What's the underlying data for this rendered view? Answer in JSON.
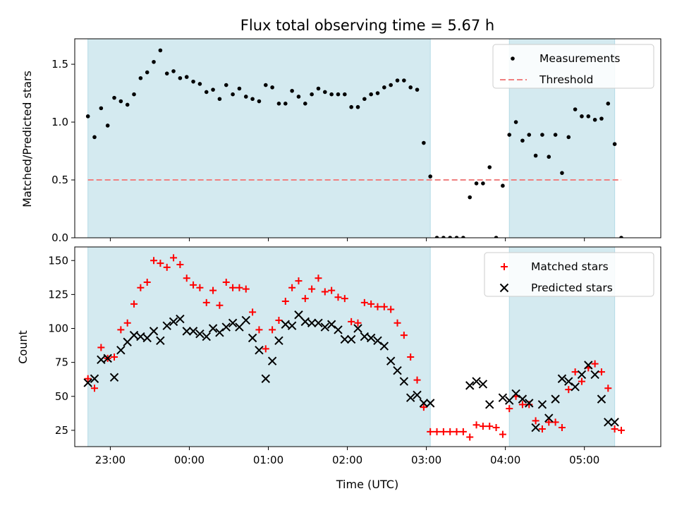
{
  "chart_data": [
    {
      "type": "scatter",
      "title": "Flux total observing time = 5.67 h",
      "xlabel": "",
      "ylabel": "Matched/Predicted stars",
      "xlim": [
        "22:33",
        "05:58"
      ],
      "ylim": [
        0,
        1.72
      ],
      "yticks": [
        0.0,
        0.5,
        1.0,
        1.5
      ],
      "ytick_labels": [
        "0.0",
        "0.5",
        "1.0",
        "1.5"
      ],
      "legend_position": "top-right",
      "shaded_intervals": [
        [
          "22:43",
          "03:03"
        ],
        [
          "04:03",
          "05:23"
        ]
      ],
      "shade_color": "#d4eaf0",
      "series": [
        {
          "name": "Measurements",
          "marker": "dot",
          "color": "#000000",
          "x": [
            "22:43",
            "22:48",
            "22:53",
            "22:58",
            "23:03",
            "23:08",
            "23:13",
            "23:18",
            "23:23",
            "23:28",
            "23:33",
            "23:38",
            "23:43",
            "23:48",
            "23:53",
            "23:58",
            "00:03",
            "00:08",
            "00:13",
            "00:18",
            "00:23",
            "00:28",
            "00:33",
            "00:38",
            "00:43",
            "00:48",
            "00:53",
            "00:58",
            "01:03",
            "01:08",
            "01:13",
            "01:18",
            "01:23",
            "01:28",
            "01:33",
            "01:38",
            "01:43",
            "01:48",
            "01:53",
            "01:58",
            "02:03",
            "02:08",
            "02:13",
            "02:18",
            "02:23",
            "02:28",
            "02:33",
            "02:38",
            "02:43",
            "02:48",
            "02:53",
            "02:58",
            "03:03",
            "03:08",
            "03:13",
            "03:18",
            "03:23",
            "03:28",
            "03:33",
            "03:38",
            "03:43",
            "03:48",
            "03:53",
            "03:58",
            "04:03",
            "04:08",
            "04:13",
            "04:18",
            "04:23",
            "04:28",
            "04:33",
            "04:38",
            "04:43",
            "04:48",
            "04:53",
            "04:58",
            "05:03",
            "05:08",
            "05:13",
            "05:18",
            "05:23",
            "05:28"
          ],
          "y": [
            1.05,
            0.87,
            1.12,
            0.97,
            1.21,
            1.18,
            1.15,
            1.24,
            1.38,
            1.43,
            1.52,
            1.62,
            1.42,
            1.44,
            1.38,
            1.39,
            1.35,
            1.33,
            1.26,
            1.28,
            1.2,
            1.32,
            1.24,
            1.29,
            1.22,
            1.2,
            1.18,
            1.32,
            1.3,
            1.16,
            1.16,
            1.27,
            1.22,
            1.16,
            1.24,
            1.29,
            1.26,
            1.24,
            1.24,
            1.24,
            1.13,
            1.13,
            1.2,
            1.24,
            1.25,
            1.3,
            1.32,
            1.36,
            1.36,
            1.3,
            1.28,
            0.82,
            0.53,
            0.0,
            0.0,
            0.0,
            0.0,
            0.0,
            0.35,
            0.47,
            0.47,
            0.61,
            0.0,
            0.45,
            0.89,
            1.0,
            0.84,
            0.89,
            0.71,
            0.89,
            0.7,
            0.89,
            0.56,
            0.87,
            1.11,
            1.05,
            1.05,
            1.02,
            1.03,
            1.16,
            0.81,
            0.0
          ]
        },
        {
          "name": "Threshold",
          "style": "dashed",
          "color": "#f08080",
          "x": [
            "22:43",
            "05:28"
          ],
          "y": [
            0.5,
            0.5
          ]
        }
      ]
    },
    {
      "type": "scatter",
      "title": "",
      "xlabel": "Time (UTC)",
      "ylabel": "Count",
      "xlim": [
        "22:33",
        "05:58"
      ],
      "ylim": [
        13,
        160
      ],
      "xticks": [
        "23:00",
        "00:00",
        "01:00",
        "02:00",
        "03:00",
        "04:00",
        "05:00"
      ],
      "yticks": [
        25,
        50,
        75,
        100,
        125,
        150
      ],
      "ytick_labels": [
        "25",
        "50",
        "75",
        "100",
        "125",
        "150"
      ],
      "legend_position": "top-right",
      "shaded_intervals": [
        [
          "22:43",
          "03:03"
        ],
        [
          "04:03",
          "05:23"
        ]
      ],
      "shade_color": "#d4eaf0",
      "series": [
        {
          "name": "Matched stars",
          "marker": "plus",
          "color": "#ff0000",
          "x": [
            "22:43",
            "22:48",
            "22:53",
            "22:58",
            "23:03",
            "23:08",
            "23:13",
            "23:18",
            "23:23",
            "23:28",
            "23:33",
            "23:38",
            "23:43",
            "23:48",
            "23:53",
            "23:58",
            "00:03",
            "00:08",
            "00:13",
            "00:18",
            "00:23",
            "00:28",
            "00:33",
            "00:38",
            "00:43",
            "00:48",
            "00:53",
            "00:58",
            "01:03",
            "01:08",
            "01:13",
            "01:18",
            "01:23",
            "01:28",
            "01:33",
            "01:38",
            "01:43",
            "01:48",
            "01:53",
            "01:58",
            "02:03",
            "02:08",
            "02:13",
            "02:18",
            "02:23",
            "02:28",
            "02:33",
            "02:38",
            "02:43",
            "02:48",
            "02:53",
            "02:58",
            "03:03",
            "03:08",
            "03:13",
            "03:18",
            "03:23",
            "03:28",
            "03:33",
            "03:38",
            "03:43",
            "03:48",
            "03:53",
            "03:58",
            "04:03",
            "04:08",
            "04:13",
            "04:18",
            "04:23",
            "04:28",
            "04:33",
            "04:38",
            "04:43",
            "04:48",
            "04:53",
            "04:58",
            "05:03",
            "05:08",
            "05:13",
            "05:18",
            "05:23",
            "05:28"
          ],
          "y": [
            63,
            56,
            86,
            78,
            79,
            99,
            104,
            118,
            130,
            134,
            150,
            148,
            145,
            152,
            147,
            137,
            132,
            130,
            119,
            128,
            117,
            134,
            130,
            130,
            129,
            112,
            99,
            85,
            99,
            106,
            120,
            130,
            135,
            122,
            129,
            137,
            127,
            128,
            123,
            122,
            105,
            104,
            119,
            118,
            116,
            116,
            114,
            104,
            95,
            79,
            62,
            42,
            24,
            24,
            24,
            24,
            24,
            24,
            20,
            29,
            28,
            28,
            27,
            22,
            41,
            50,
            44,
            44,
            32,
            26,
            31,
            31,
            27,
            55,
            68,
            61,
            71,
            74,
            68,
            56,
            26,
            25
          ]
        },
        {
          "name": "Predicted stars",
          "marker": "x",
          "color": "#000000",
          "x": [
            "22:43",
            "22:48",
            "22:53",
            "22:58",
            "23:03",
            "23:08",
            "23:13",
            "23:18",
            "23:23",
            "23:28",
            "23:33",
            "23:38",
            "23:43",
            "23:48",
            "23:53",
            "23:58",
            "00:03",
            "00:08",
            "00:13",
            "00:18",
            "00:23",
            "00:28",
            "00:33",
            "00:38",
            "00:43",
            "00:48",
            "00:53",
            "00:58",
            "01:03",
            "01:08",
            "01:13",
            "01:18",
            "01:23",
            "01:28",
            "01:33",
            "01:38",
            "01:43",
            "01:48",
            "01:53",
            "01:58",
            "02:03",
            "02:08",
            "02:13",
            "02:18",
            "02:23",
            "02:28",
            "02:33",
            "02:38",
            "02:43",
            "02:48",
            "02:53",
            "02:58",
            "03:03",
            "03:33",
            "03:38",
            "03:43",
            "03:48",
            "03:58",
            "04:03",
            "04:08",
            "04:13",
            "04:18",
            "04:23",
            "04:28",
            "04:33",
            "04:38",
            "04:43",
            "04:48",
            "04:53",
            "04:58",
            "05:03",
            "05:08",
            "05:13",
            "05:18",
            "05:23"
          ],
          "y": [
            60,
            63,
            77,
            78,
            64,
            84,
            90,
            95,
            94,
            93,
            98,
            91,
            102,
            105,
            107,
            98,
            98,
            96,
            94,
            100,
            97,
            101,
            104,
            101,
            106,
            93,
            84,
            63,
            76,
            91,
            103,
            102,
            110,
            105,
            104,
            104,
            101,
            103,
            99,
            92,
            92,
            100,
            94,
            93,
            91,
            87,
            76,
            69,
            61,
            49,
            51,
            45,
            45,
            58,
            61,
            59,
            44,
            49,
            47,
            52,
            48,
            45,
            27,
            44,
            34,
            48,
            63,
            61,
            57,
            66,
            73,
            66,
            48,
            31,
            31
          ]
        }
      ]
    }
  ]
}
